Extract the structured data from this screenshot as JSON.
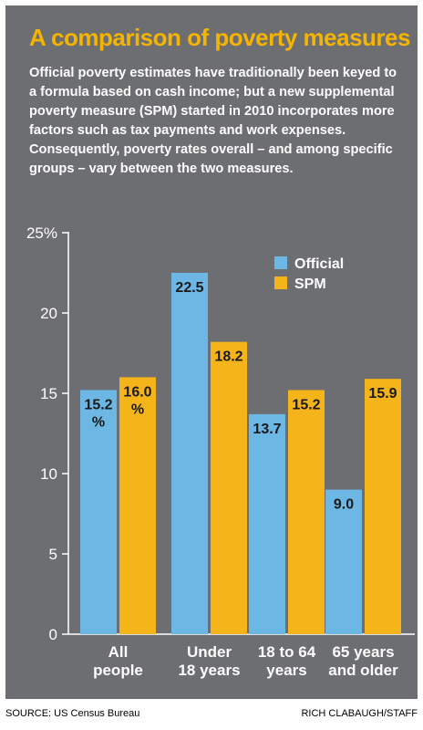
{
  "title": "A comparison of poverty measures",
  "subtitle": "Official poverty estimates have traditionally been keyed to a formula based on cash income; but a new supplemental poverty measure (SPM) started in 2010 incorporates more factors such as tax payments and work expenses. Consequently, poverty rates overall – and among specific groups – vary between the two measures.",
  "source": "SOURCE: US Census Bureau",
  "credit": "RICH CLABAUGH/STAFF",
  "colors": {
    "official": "#6cb7e4",
    "spm": "#f4b41a",
    "panel": "#6d6e71",
    "title": "#f5b400"
  },
  "chart_data": {
    "type": "bar",
    "categories": [
      [
        "All",
        "people"
      ],
      [
        "Under",
        "18 years"
      ],
      [
        "18 to 64",
        "years"
      ],
      [
        "65 years",
        "and older"
      ]
    ],
    "series": [
      {
        "name": "Official",
        "values": [
          15.2,
          22.5,
          13.7,
          9.0
        ],
        "labels": [
          "15.2",
          "22.5",
          "13.7",
          "9.0"
        ]
      },
      {
        "name": "SPM",
        "values": [
          16.0,
          18.2,
          15.2,
          15.9
        ],
        "labels": [
          "16.0",
          "18.2",
          "15.2",
          "15.9"
        ]
      }
    ],
    "first_label_unit": "%",
    "yticks": [
      "0",
      "5",
      "10",
      "15",
      "20",
      "25%"
    ],
    "ylim": [
      0,
      25
    ],
    "legend_position": "top-right"
  }
}
